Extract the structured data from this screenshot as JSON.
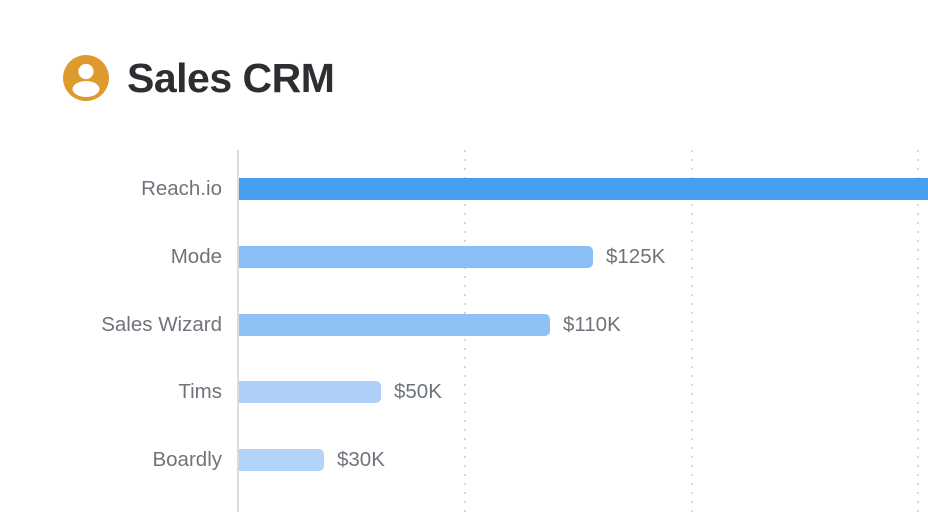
{
  "header": {
    "title": "Sales CRM",
    "icon": "user-icon",
    "icon_color": "#DF9A2E"
  },
  "chart_data": {
    "type": "bar",
    "orientation": "horizontal",
    "title": "Sales CRM",
    "categories": [
      "Reach.io",
      "Mode",
      "Sales Wizard",
      "Tims",
      "Boardly"
    ],
    "values_k_usd": [
      243,
      125,
      110,
      50,
      30
    ],
    "value_labels": [
      "",
      "$125K",
      "$110K",
      "$50K",
      "$30K"
    ],
    "bars": [
      {
        "label": "Reach.io",
        "value_k": 243,
        "value_label": "",
        "color": "#459EF0",
        "clipped": true
      },
      {
        "label": "Mode",
        "value_k": 125,
        "value_label": "$125K",
        "color": "#8ABEF5",
        "clipped": false
      },
      {
        "label": "Sales Wizard",
        "value_k": 110,
        "value_label": "$110K",
        "color": "#8FC1F6",
        "clipped": false
      },
      {
        "label": "Tims",
        "value_k": 50,
        "value_label": "$50K",
        "color": "#AED0F8",
        "clipped": false
      },
      {
        "label": "Boardly",
        "value_k": 30,
        "value_label": "$30K",
        "color": "#B3D4F9",
        "clipped": false
      }
    ],
    "x_gridlines_k": [
      80,
      160,
      240
    ],
    "xlim_k": [
      0,
      243
    ],
    "grid": "dotted-vertical",
    "legend": "none",
    "colors": {
      "axis_line": "#D9DBDD",
      "grid_dots": "#D9D9D9",
      "label_text": "#6F747B",
      "title_text": "#2D2E31"
    },
    "notes": "Reach.io bar is clipped at the right edge of the image; its value label is not visible. Values in thousands USD."
  }
}
